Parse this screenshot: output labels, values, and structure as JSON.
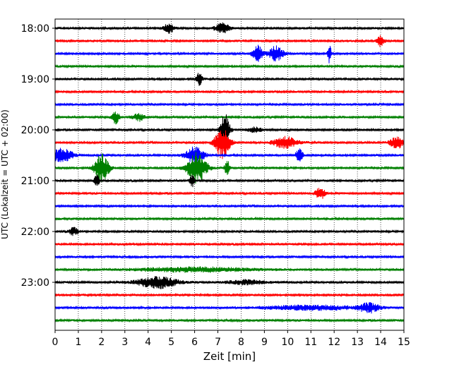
{
  "chart_data": {
    "type": "line",
    "title": "",
    "xlabel": "Zeit  [min]",
    "ylabel": "UTC (Lokalzeit = UTC + 02:00)",
    "xlim": [
      0,
      15
    ],
    "x_ticks": [
      "0",
      "1",
      "2",
      "3",
      "4",
      "5",
      "6",
      "7",
      "8",
      "9",
      "10",
      "11",
      "12",
      "13",
      "14",
      "15"
    ],
    "y_ticks": [
      {
        "label": "18:00",
        "trace_index": 0
      },
      {
        "label": "19:00",
        "trace_index": 4
      },
      {
        "label": "20:00",
        "trace_index": 8
      },
      {
        "label": "21:00",
        "trace_index": 12
      },
      {
        "label": "22:00",
        "trace_index": 16
      },
      {
        "label": "23:00",
        "trace_index": 20
      }
    ],
    "grid": "vertical dotted at each minute",
    "color_cycle": [
      "#000000",
      "#ff0000",
      "#0000ff",
      "#008000"
    ],
    "trace_count": 24,
    "minutes_per_trace": 15,
    "start_time_utc": "18:00",
    "base_amplitude": 0.16,
    "events": [
      {
        "trace": 0,
        "time_min": 4.9,
        "width": 0.4,
        "amp": 0.8
      },
      {
        "trace": 0,
        "time_min": 7.2,
        "width": 0.6,
        "amp": 0.8
      },
      {
        "trace": 1,
        "time_min": 14.0,
        "width": 0.3,
        "amp": 0.9
      },
      {
        "trace": 2,
        "time_min": 8.7,
        "width": 0.4,
        "amp": 1.4
      },
      {
        "trace": 2,
        "time_min": 9.5,
        "width": 0.6,
        "amp": 1.2
      },
      {
        "trace": 2,
        "time_min": 11.8,
        "width": 0.15,
        "amp": 1.5
      },
      {
        "trace": 4,
        "time_min": 6.2,
        "width": 0.25,
        "amp": 1.0
      },
      {
        "trace": 7,
        "time_min": 2.6,
        "width": 0.3,
        "amp": 1.0
      },
      {
        "trace": 7,
        "time_min": 3.6,
        "width": 0.5,
        "amp": 0.6
      },
      {
        "trace": 8,
        "time_min": 7.3,
        "width": 0.4,
        "amp": 2.5
      },
      {
        "trace": 8,
        "time_min": 8.6,
        "width": 0.6,
        "amp": 0.4
      },
      {
        "trace": 9,
        "time_min": 7.2,
        "width": 0.6,
        "amp": 2.6
      },
      {
        "trace": 9,
        "time_min": 9.9,
        "width": 1.0,
        "amp": 0.9
      },
      {
        "trace": 9,
        "time_min": 14.7,
        "width": 0.6,
        "amp": 0.9
      },
      {
        "trace": 10,
        "time_min": 0.3,
        "width": 0.9,
        "amp": 1.1
      },
      {
        "trace": 10,
        "time_min": 6.0,
        "width": 0.8,
        "amp": 1.3
      },
      {
        "trace": 10,
        "time_min": 10.5,
        "width": 0.3,
        "amp": 1.0
      },
      {
        "trace": 11,
        "time_min": 2.0,
        "width": 0.6,
        "amp": 2.2
      },
      {
        "trace": 11,
        "time_min": 6.1,
        "width": 0.8,
        "amp": 2.4
      },
      {
        "trace": 11,
        "time_min": 7.4,
        "width": 0.2,
        "amp": 1.2
      },
      {
        "trace": 12,
        "time_min": 1.8,
        "width": 0.2,
        "amp": 1.0
      },
      {
        "trace": 12,
        "time_min": 5.9,
        "width": 0.2,
        "amp": 1.0
      },
      {
        "trace": 13,
        "time_min": 11.4,
        "width": 0.4,
        "amp": 1.0
      },
      {
        "trace": 16,
        "time_min": 0.8,
        "width": 0.4,
        "amp": 0.6
      },
      {
        "trace": 19,
        "time_min": 6.0,
        "width": 5.0,
        "amp": 0.35
      },
      {
        "trace": 20,
        "time_min": 4.4,
        "width": 1.7,
        "amp": 0.9
      },
      {
        "trace": 20,
        "time_min": 8.2,
        "width": 1.6,
        "amp": 0.35
      },
      {
        "trace": 22,
        "time_min": 13.5,
        "width": 0.8,
        "amp": 0.7
      },
      {
        "trace": 22,
        "time_min": 11.0,
        "width": 4.0,
        "amp": 0.35
      }
    ]
  }
}
